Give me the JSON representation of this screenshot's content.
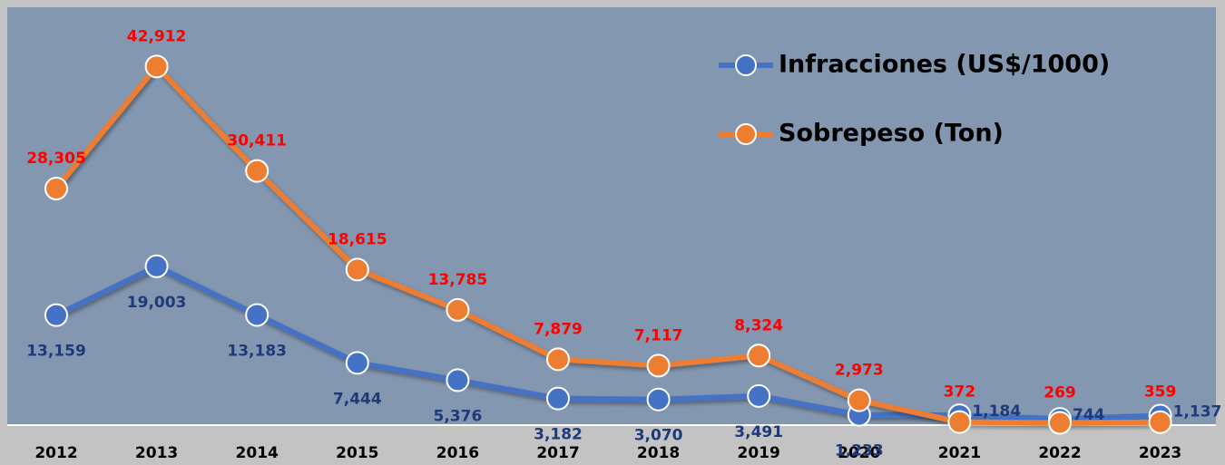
{
  "chart_data": {
    "type": "line",
    "categories": [
      "2012",
      "2013",
      "2014",
      "2015",
      "2016",
      "2017",
      "2018",
      "2019",
      "2020",
      "2021",
      "2022",
      "2023"
    ],
    "series": [
      {
        "name": "Infracciones (US$/1000)",
        "color": "#4472c4",
        "label_color": "#1f3a7a",
        "values": [
          13159,
          19003,
          13183,
          7444,
          5376,
          3182,
          3070,
          3491,
          1233,
          1184,
          744,
          1137
        ],
        "value_labels": [
          "13,159",
          "19,003",
          "13,183",
          "7,444",
          "5,376",
          "3,182",
          "3,070",
          "3,491",
          "1,233",
          "1,184",
          "744",
          "1,137"
        ]
      },
      {
        "name": "Sobrepeso (Ton)",
        "color": "#ed7d31",
        "label_color": "#ff0000",
        "values": [
          28305,
          42912,
          30411,
          18615,
          13785,
          7879,
          7117,
          8324,
          2973,
          372,
          269,
          359
        ],
        "value_labels": [
          "28,305",
          "42,912",
          "30,411",
          "18,615",
          "13,785",
          "7,879",
          "7,117",
          "8,324",
          "2,973",
          "372",
          "269",
          "359"
        ]
      }
    ],
    "ylim": [
      0,
      50000
    ],
    "legend": "top-right"
  }
}
